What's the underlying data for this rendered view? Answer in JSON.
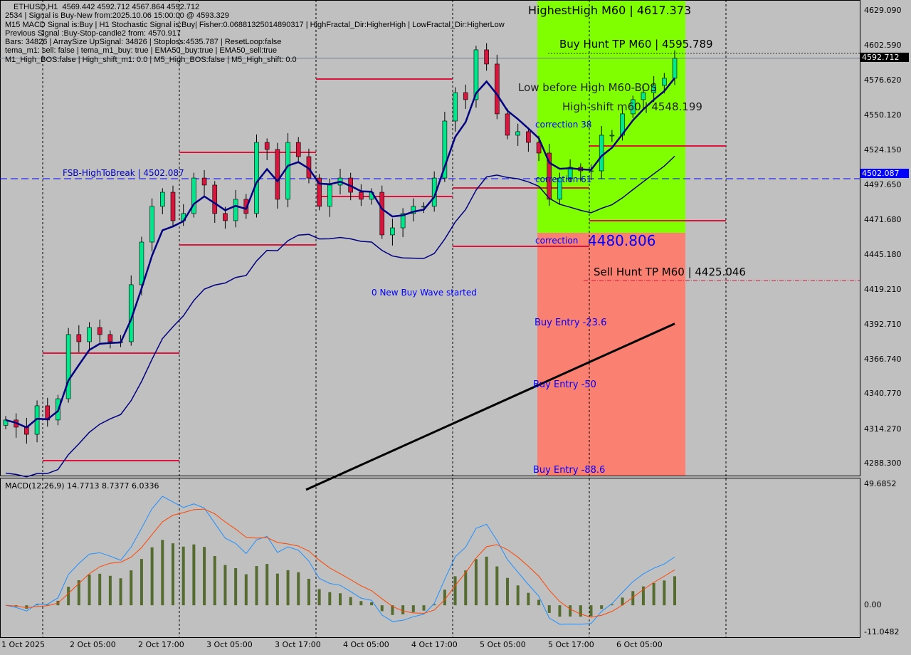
{
  "header": {
    "symbol_line": "ETHUSD,H1  4569.442 4592.712 4567.864 4592.712",
    "lines": [
      "2534 | Signal is Buy-New from:2025.10.06 15:00:00 @ 4593.329",
      "M15 MACD Signal is:Buy | H1 Stochastic Signal is:Buy| Fisher:0.06881325014890317 | HighFractal_Dir:HigherHigh | LowFractal_Dir:HigherLow",
      "Previous Signal :Buy-Stop-candle2 from: 4570.917",
      "Bars: 34826 | ArraySize UpSignal: 34826 | Stoploss:4535.787 | ResetLoop:false",
      "tema_m1: sell: false | tema_m1_buy: true | EMA50_buy:true | EMA50_sell:true",
      "M1_High_BOS:false | High_shift_m1: 0.0 | M5_High_BOS:false | M5_High_shift: 0.0"
    ]
  },
  "labels": {
    "highest_high": "HighestHigh   M60 | 4617.373",
    "buy_hunt_tp": "Buy Hunt TP M60 | 4595.789",
    "low_before_high": "Low before High   M60-BOS",
    "high_shift": "High-shift m60 | 4548.199",
    "correction_38": "correction 38",
    "correction_61": "correction 61",
    "correction": "correction",
    "correction_price": "4480.806",
    "sell_hunt_tp": "Sell Hunt TP M60 | 4425.046",
    "new_buy_wave": "0 New Buy Wave started",
    "buy_entry_236": "Buy Entry -23.6",
    "buy_entry_50": "Buy Entry -50",
    "buy_entry_886": "Buy Entry -88.6",
    "fsb": "FSB-HighToBreak | 4502.087"
  },
  "colors": {
    "bull": "#00e68a",
    "bear": "#d6163c",
    "zone_buy": "#80ff00",
    "zone_sell": "#fa8072",
    "ema_fast": "#000080",
    "ema_slow": "#000000",
    "level": "#dc143c",
    "fsb": "#0000ff",
    "macd_hist": "#556b2f",
    "macd_line": "#1e90ff",
    "signal_line": "#ff4500"
  },
  "chart_data": {
    "type": "candlestick",
    "symbol": "ETHUSD",
    "timeframe": "H1",
    "ylim": [
      4288.3,
      4629.09
    ],
    "y_ticks": [
      "4629.090",
      "4602.590",
      "4576.620",
      "4550.120",
      "4524.150",
      "4497.650",
      "4471.680",
      "4445.180",
      "4419.210",
      "4392.710",
      "4366.740",
      "4340.770",
      "4314.270",
      "4288.300"
    ],
    "x_ticks": [
      "1 Oct 2025",
      "2 Oct 05:00",
      "2 Oct 17:00",
      "3 Oct 05:00",
      "3 Oct 17:00",
      "4 Oct 05:00",
      "4 Oct 17:00",
      "5 Oct 05:00",
      "5 Oct 17:00",
      "6 Oct 05:00"
    ],
    "closes": [
      4320.5,
      4315.1,
      4309.7,
      4331.2,
      4320.5,
      4336.5,
      4384.8,
      4379.4,
      4390.1,
      4384.8,
      4379.4,
      4379.4,
      4422.3,
      4454.4,
      4481.3,
      4491.9,
      4470.5,
      4475.9,
      4502.6,
      4497.3,
      4475.9,
      4470.5,
      4486.6,
      4475.9,
      4529.4,
      4524.1,
      4486.6,
      4529.4,
      4518.7,
      4502.6,
      4481.3,
      4497.3,
      4502.6,
      4491.9,
      4486.6,
      4491.9,
      4459.8,
      4465.1,
      4475.9,
      4481.3,
      4481.3,
      4502.6,
      4545.5,
      4566.9,
      4561.6,
      4599.1,
      4588.4,
      4550.9,
      4534.8,
      4537.5,
      4529.4,
      4521.4,
      4486.6,
      4502.6,
      4510.7,
      4508.0,
      4508.0,
      4534.8,
      4534.8,
      4550.9,
      4561.6,
      4566.9,
      4572.3,
      4577.7,
      4592.7
    ],
    "current_price": "4592.712",
    "fsb_level": "4502.087",
    "slow_ma": {
      "start": 4268.0,
      "end": 4393.0
    },
    "macd": {
      "label": "MACD(12,26,9) 14.7713 8.7377 6.0336",
      "ylim": [
        -11.0482,
        49.6852
      ],
      "y_ticks": [
        "49.6852",
        "0.00",
        "-11.0482"
      ]
    }
  }
}
